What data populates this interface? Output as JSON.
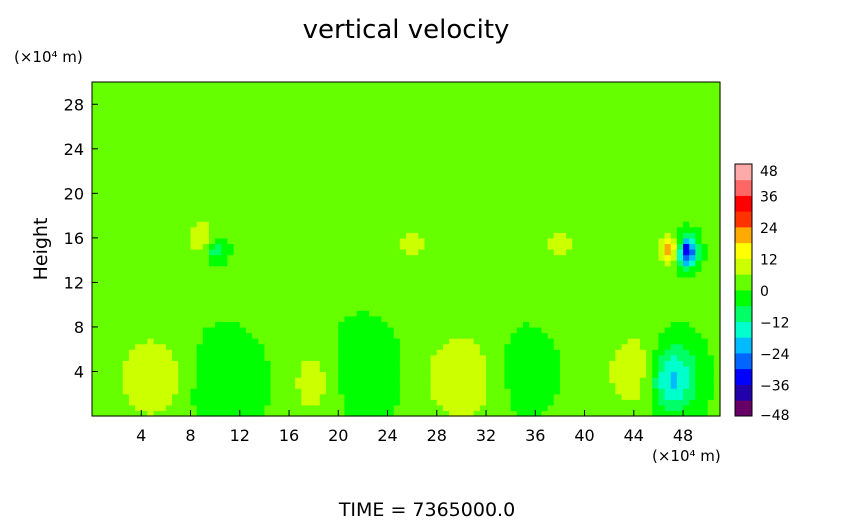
{
  "chart_data": {
    "type": "heatmap",
    "title": "vertical velocity",
    "ylabel": "Height",
    "y_unit_label": "(×10⁴ m)",
    "x_unit_label": "(×10⁴ m)",
    "footer": "TIME = 7365000.0",
    "xlim": [
      0,
      51
    ],
    "ylim": [
      0,
      30
    ],
    "x_ticks": [
      4,
      8,
      12,
      16,
      20,
      24,
      28,
      32,
      36,
      40,
      44,
      48
    ],
    "y_ticks": [
      4,
      8,
      12,
      16,
      20,
      24,
      28
    ],
    "colorbar": {
      "range": [
        -48,
        48
      ],
      "ticks": [
        48,
        36,
        24,
        12,
        0,
        -12,
        -24,
        -36,
        -48
      ],
      "colors": [
        "#660066",
        "#2200aa",
        "#0000ff",
        "#0066ff",
        "#00bbff",
        "#00ffcc",
        "#00ff66",
        "#00ff00",
        "#66ff00",
        "#ccff00",
        "#ffff00",
        "#ffaa00",
        "#ff3300",
        "#ff0000",
        "#ff6666",
        "#ffaaaa"
      ]
    },
    "background_value": 1,
    "features": [
      {
        "x": 5,
        "y": 3.5,
        "rx": 3.0,
        "ry": 4.0,
        "value": 10
      },
      {
        "x": 10.5,
        "y": 3.0,
        "rx": 3.0,
        "ry": 4.0,
        "value": -7
      },
      {
        "x": 18,
        "y": 3.0,
        "rx": 2.0,
        "ry": 3.5,
        "value": 8
      },
      {
        "x": 22,
        "y": 4.0,
        "rx": 2.8,
        "ry": 4.0,
        "value": -6
      },
      {
        "x": 30,
        "y": 3.5,
        "rx": 3.0,
        "ry": 4.0,
        "value": 11
      },
      {
        "x": 35,
        "y": 4.0,
        "rx": 2.5,
        "ry": 3.5,
        "value": -5
      },
      {
        "x": 44.5,
        "y": 4.0,
        "rx": 2.5,
        "ry": 3.5,
        "value": 12
      },
      {
        "x": 47,
        "y": 3.5,
        "rx": 2.0,
        "ry": 3.0,
        "value": -24
      },
      {
        "x": 9,
        "y": 16,
        "rx": 1.0,
        "ry": 1.5,
        "value": 12
      },
      {
        "x": 10,
        "y": 15,
        "rx": 0.8,
        "ry": 1.0,
        "value": -14
      },
      {
        "x": 26,
        "y": 15.5,
        "rx": 1.5,
        "ry": 1.2,
        "value": 8
      },
      {
        "x": 38,
        "y": 15.5,
        "rx": 1.2,
        "ry": 1.2,
        "value": 8
      },
      {
        "x": 47,
        "y": 15,
        "rx": 1.0,
        "ry": 1.2,
        "value": 20
      },
      {
        "x": 48.3,
        "y": 14.8,
        "rx": 0.8,
        "ry": 1.3,
        "value": -40
      }
    ]
  }
}
